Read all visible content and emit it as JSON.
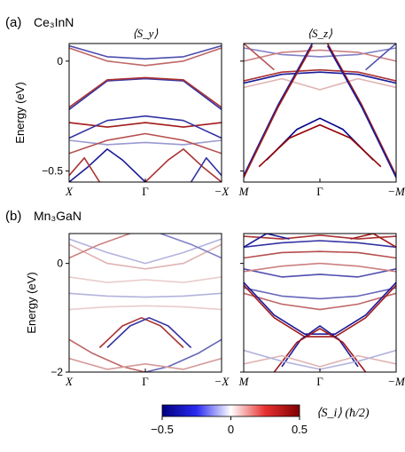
{
  "chart_data": [
    {
      "type": "line",
      "label": "(a)",
      "material": "Ce₃InN",
      "titles": [
        "⟨S_y⟩",
        "⟨S_z⟩"
      ],
      "ylabel": "Energy (eV)",
      "ylim": [
        -0.55,
        0.08
      ],
      "yticks": [
        0,
        -0.5
      ],
      "ytick_labels": [
        "0",
        "−0.5"
      ],
      "panels": [
        {
          "xticks": [
            "X",
            "Γ",
            "−X"
          ],
          "bands": [
            {
              "x": [
                -1,
                -0.5,
                0,
                0.5,
                1
              ],
              "y": [
                -0.22,
                -0.09,
                -0.08,
                -0.09,
                -0.22
              ],
              "spin": -0.8
            },
            {
              "x": [
                -1,
                -0.5,
                0,
                0.5,
                1
              ],
              "y": [
                -0.21,
                -0.085,
                -0.075,
                -0.085,
                -0.21
              ],
              "spin": 0.8
            },
            {
              "x": [
                -1,
                -0.5,
                0,
                0.5,
                1
              ],
              "y": [
                0.07,
                0.02,
                0.01,
                0.02,
                0.07
              ],
              "spin": -0.7
            },
            {
              "x": [
                -1,
                -0.5,
                0,
                0.5,
                1
              ],
              "y": [
                0.06,
                0.0,
                -0.02,
                0.0,
                0.06
              ],
              "spin": 0.6
            },
            {
              "x": [
                -1,
                -0.5,
                0,
                0.5,
                1
              ],
              "y": [
                -0.28,
                -0.3,
                -0.28,
                -0.3,
                -0.28
              ],
              "spin": 0.9
            },
            {
              "x": [
                -1,
                -0.5,
                0,
                0.5,
                1
              ],
              "y": [
                -0.35,
                -0.27,
                -0.25,
                -0.27,
                -0.35
              ],
              "spin": -0.8
            },
            {
              "x": [
                -1,
                -0.5,
                0,
                0.5,
                1
              ],
              "y": [
                -0.36,
                -0.38,
                -0.37,
                -0.38,
                -0.36
              ],
              "spin": -0.4
            },
            {
              "x": [
                -1,
                -0.5,
                0,
                0.5,
                1
              ],
              "y": [
                -0.42,
                -0.36,
                -0.33,
                -0.36,
                -0.42
              ],
              "spin": 0.7
            },
            {
              "x": [
                -1,
                -0.75,
                -0.5,
                -0.3,
                0
              ],
              "y": [
                -0.55,
                -0.48,
                -0.4,
                -0.45,
                -0.55
              ],
              "spin": -0.9
            },
            {
              "x": [
                0,
                0.3,
                0.5,
                0.75,
                1
              ],
              "y": [
                -0.55,
                -0.45,
                -0.4,
                -0.48,
                -0.55
              ],
              "spin": 0.8
            },
            {
              "x": [
                -1,
                -0.8,
                -0.6
              ],
              "y": [
                -0.52,
                -0.44,
                -0.55
              ],
              "spin": 0.8
            },
            {
              "x": [
                0.6,
                0.8,
                1
              ],
              "y": [
                -0.55,
                -0.44,
                -0.52
              ],
              "spin": -0.8
            }
          ]
        },
        {
          "xticks": [
            "M",
            "Γ",
            "−M"
          ],
          "bands": [
            {
              "x": [
                -1,
                -0.5,
                0,
                0.5,
                1
              ],
              "y": [
                -0.1,
                -0.06,
                -0.05,
                -0.06,
                -0.1
              ],
              "spin": -0.9
            },
            {
              "x": [
                -1,
                -0.5,
                0,
                0.5,
                1
              ],
              "y": [
                -0.09,
                -0.05,
                -0.04,
                -0.05,
                -0.09
              ],
              "spin": 0.8
            },
            {
              "x": [
                -1,
                -0.5,
                0,
                0.5,
                1
              ],
              "y": [
                0.06,
                0.03,
                0.02,
                0.03,
                0.06
              ],
              "spin": -0.5
            },
            {
              "x": [
                -1,
                -0.5,
                0,
                0.5,
                1
              ],
              "y": [
                0.0,
                0.04,
                0.05,
                0.04,
                0.0
              ],
              "spin": 0.5
            },
            {
              "x": [
                -1,
                -0.5,
                0,
                0.5,
                1
              ],
              "y": [
                -0.12,
                -0.08,
                -0.13,
                -0.08,
                -0.12
              ],
              "spin": 0.3
            },
            {
              "x": [
                -0.7,
                -0.3,
                0,
                0.3,
                0.7
              ],
              "y": [
                -0.45,
                -0.31,
                -0.26,
                -0.31,
                -0.45
              ],
              "spin": -1.0
            },
            {
              "x": [
                -0.8,
                -0.4,
                0,
                0.4,
                0.8
              ],
              "y": [
                -0.48,
                -0.35,
                -0.29,
                -0.35,
                -0.48
              ],
              "spin": 1.0
            },
            {
              "x": [
                -1,
                -0.55,
                -0.1
              ],
              "y": [
                -0.52,
                -0.2,
                0.08
              ],
              "spin": -0.9
            },
            {
              "x": [
                -1,
                -0.55,
                -0.1
              ],
              "y": [
                -0.53,
                -0.21,
                0.07
              ],
              "spin": 0.9
            },
            {
              "x": [
                0.1,
                0.55,
                1
              ],
              "y": [
                0.08,
                -0.2,
                -0.52
              ],
              "spin": 0.9
            },
            {
              "x": [
                0.1,
                0.55,
                1
              ],
              "y": [
                0.07,
                -0.21,
                -0.53
              ],
              "spin": -0.9
            },
            {
              "x": [
                -1,
                -0.6
              ],
              "y": [
                0.08,
                -0.04
              ],
              "spin": 0.7
            },
            {
              "x": [
                0.6,
                1
              ],
              "y": [
                -0.04,
                0.08
              ],
              "spin": -0.7
            }
          ]
        }
      ]
    },
    {
      "type": "line",
      "label": "(b)",
      "material": "Mn₃GaN",
      "ylabel": "Energy (eV)",
      "ylim": [
        -2.0,
        0.55
      ],
      "yticks": [
        0,
        -2
      ],
      "ytick_labels": [
        "0",
        "−2"
      ],
      "panels": [
        {
          "xticks": [
            "X",
            "Γ",
            "−X"
          ],
          "bands": [
            {
              "x": [
                -1,
                -0.5,
                0,
                0.5,
                1
              ],
              "y": [
                0.45,
                0.2,
                0.0,
                0.2,
                0.45
              ],
              "spin": -0.3
            },
            {
              "x": [
                -1,
                -0.5,
                0,
                0.5,
                1
              ],
              "y": [
                0.35,
                0.0,
                -0.1,
                0.0,
                0.35
              ],
              "spin": 0.3
            },
            {
              "x": [
                -1,
                -0.5,
                0,
                0.5,
                1
              ],
              "y": [
                -0.25,
                -0.35,
                -0.3,
                -0.35,
                -0.25
              ],
              "spin": 0.2
            },
            {
              "x": [
                -1,
                -0.5,
                0,
                0.5,
                1
              ],
              "y": [
                -0.55,
                -0.6,
                -0.62,
                -0.6,
                -0.55
              ],
              "spin": -0.3
            },
            {
              "x": [
                -1,
                -0.5,
                0,
                0.5,
                1
              ],
              "y": [
                -0.85,
                -0.8,
                -0.78,
                -0.8,
                -0.85
              ],
              "spin": 0.2
            },
            {
              "x": [
                -0.6,
                -0.3,
                -0.05,
                0.2,
                0.5
              ],
              "y": [
                -1.55,
                -1.15,
                -1.0,
                -1.15,
                -1.55
              ],
              "spin": 0.8
            },
            {
              "x": [
                -0.5,
                -0.2,
                0.05,
                0.3,
                0.6
              ],
              "y": [
                -1.55,
                -1.15,
                -1.0,
                -1.15,
                -1.55
              ],
              "spin": -0.8
            },
            {
              "x": [
                -1,
                -0.7,
                -0.3,
                0
              ],
              "y": [
                -1.4,
                -1.65,
                -1.9,
                -2.0
              ],
              "spin": 0.6
            },
            {
              "x": [
                0,
                0.3,
                0.7,
                1
              ],
              "y": [
                -2.0,
                -1.9,
                -1.65,
                -1.4
              ],
              "spin": -0.6
            },
            {
              "x": [
                -1,
                -0.5,
                0,
                0.5,
                1
              ],
              "y": [
                -1.75,
                -1.95,
                -1.85,
                -1.95,
                -1.75
              ],
              "spin": 0.4
            },
            {
              "x": [
                -1,
                -0.6,
                -0.2
              ],
              "y": [
                0.1,
                0.35,
                0.55
              ],
              "spin": 0.5
            },
            {
              "x": [
                0.2,
                0.6,
                1
              ],
              "y": [
                0.55,
                0.35,
                0.1
              ],
              "spin": -0.5
            }
          ]
        },
        {
          "xticks": [
            "M",
            "Γ",
            "−M"
          ],
          "bands": [
            {
              "x": [
                -1,
                -0.5,
                0,
                0.5,
                1
              ],
              "y": [
                0.5,
                0.45,
                0.52,
                0.45,
                0.5
              ],
              "spin": 0.8
            },
            {
              "x": [
                -1,
                -0.5,
                0,
                0.5,
                1
              ],
              "y": [
                0.3,
                0.38,
                0.42,
                0.38,
                0.3
              ],
              "spin": -0.8
            },
            {
              "x": [
                -1,
                -0.5,
                0,
                0.5,
                1
              ],
              "y": [
                0.1,
                0.2,
                0.22,
                0.2,
                0.1
              ],
              "spin": 0.7
            },
            {
              "x": [
                -1,
                -0.5,
                0,
                0.5,
                1
              ],
              "y": [
                -0.1,
                -0.25,
                -0.2,
                -0.25,
                -0.1
              ],
              "spin": -0.7
            },
            {
              "x": [
                -1,
                -0.5,
                0,
                0.5,
                1
              ],
              "y": [
                -0.15,
                -0.05,
                0.0,
                -0.05,
                -0.15
              ],
              "spin": 0.5
            },
            {
              "x": [
                -1,
                -0.5,
                0,
                0.5,
                1
              ],
              "y": [
                -0.45,
                -0.6,
                -0.65,
                -0.6,
                -0.45
              ],
              "spin": -0.6
            },
            {
              "x": [
                -1,
                -0.5,
                0,
                0.5,
                1
              ],
              "y": [
                -0.55,
                -0.75,
                -0.85,
                -0.75,
                -0.55
              ],
              "spin": 0.6
            },
            {
              "x": [
                -1,
                -0.6,
                -0.2,
                0.2,
                0.6,
                1
              ],
              "y": [
                -0.35,
                -0.95,
                -1.3,
                -1.3,
                -0.95,
                -0.35
              ],
              "spin": -0.9
            },
            {
              "x": [
                -1,
                -0.6,
                -0.2,
                0.2,
                0.6,
                1
              ],
              "y": [
                -0.4,
                -1.0,
                -1.35,
                -1.35,
                -1.0,
                -0.4
              ],
              "spin": 0.9
            },
            {
              "x": [
                -0.5,
                -0.25,
                0,
                0.25,
                0.5
              ],
              "y": [
                -1.9,
                -1.4,
                -1.15,
                -1.4,
                -1.9
              ],
              "spin": -0.9
            },
            {
              "x": [
                -0.6,
                -0.3,
                0,
                0.3,
                0.6
              ],
              "y": [
                -2.0,
                -1.45,
                -1.2,
                -1.45,
                -2.0
              ],
              "spin": 0.9
            },
            {
              "x": [
                -1,
                -0.5,
                0,
                0.5,
                1
              ],
              "y": [
                -1.85,
                -1.7,
                -1.9,
                -1.7,
                -1.85
              ],
              "spin": 0.3
            },
            {
              "x": [
                -1,
                -0.5,
                0,
                0.5,
                1
              ],
              "y": [
                -1.6,
                -1.8,
                -1.95,
                -1.8,
                -1.6
              ],
              "spin": -0.3
            },
            {
              "x": [
                -1,
                -0.7,
                -0.4
              ],
              "y": [
                0.3,
                0.55,
                0.45
              ],
              "spin": -0.9
            },
            {
              "x": [
                0.4,
                0.7,
                1
              ],
              "y": [
                0.45,
                0.55,
                0.3
              ],
              "spin": 0.9
            }
          ]
        }
      ]
    }
  ],
  "colorbar": {
    "label": "⟨S_i⟩ (ħ/2)",
    "min": -0.5,
    "max": 0.5,
    "ticks": [
      "−0.5",
      "0",
      "0.5"
    ],
    "colors": {
      "negative": "#000080",
      "zero": "#ffffff",
      "positive": "#800000"
    }
  }
}
